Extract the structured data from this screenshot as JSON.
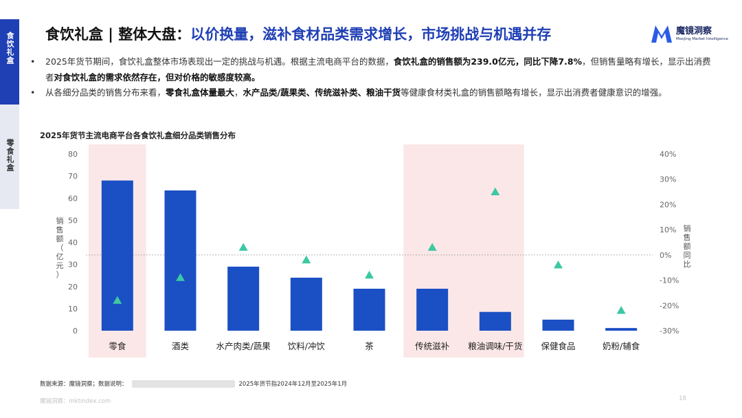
{
  "side_tabs": {
    "active": "食饮礼盒",
    "inactive": "零食礼盒"
  },
  "header": {
    "title_prefix": "食饮礼盒 | 整体大盘：",
    "title_highlight": "以价换量，滋补食材品类需求增长，市场挑战与机遇并存",
    "logo_cn": "魔镜洞察",
    "logo_en": "Moojing Market Intelligence",
    "logo_color": "#2b5ce8"
  },
  "bullets": [
    {
      "s1": "2025年货节期间，食饮礼盒整体市场表现出一定的挑战与机遇。根据主流电商平台的数据，",
      "b1": "食饮礼盒的销售额为239.0亿元，同比下降7.8%",
      "s2": "，但销售量略有增长，显示出消费者",
      "b2": "对食饮礼盒的需求依然存在，但对价格的敏感度较高。",
      "s3": "",
      "b3": "",
      "s4": ""
    },
    {
      "s1": "从各细分品类的销售分布来看，",
      "b1": "零食礼盒体量最大",
      "s2": "，",
      "b2": "水产品类/蔬果类、传统滋补类、粮油干货",
      "s3": "等健康食材类礼盒的销售额略有增长，显示出消费者健康意识的增强。",
      "b3": "",
      "s4": ""
    }
  ],
  "chart_data": {
    "type": "bar",
    "title": "2025年货节主流电商平台各食饮礼盒细分品类销售分布",
    "categories": [
      "零食",
      "酒类",
      "水产肉类/蔬果",
      "饮料/冲饮",
      "茶",
      "传统滋补",
      "粮油调味/干货",
      "保健食品",
      "奶粉/辅食"
    ],
    "series": [
      {
        "name": "销售额（亿元）",
        "kind": "bar",
        "axis": "left",
        "values": [
          68,
          63.5,
          29,
          24,
          19,
          19,
          8.5,
          5,
          1.2
        ],
        "color": "#1b4fc4"
      },
      {
        "name": "销售额同比",
        "kind": "marker",
        "axis": "right",
        "values": [
          -18,
          -9,
          3,
          -2,
          -8,
          3,
          25,
          -4,
          -22
        ],
        "color": "#3cc8a2"
      }
    ],
    "ylabel": "销售额（亿元）",
    "y2label": "销售额同比",
    "ylim": [
      0,
      80
    ],
    "yticks": [
      "0",
      "10",
      "20",
      "30",
      "40",
      "50",
      "60",
      "70",
      "80"
    ],
    "y2lim": [
      -30,
      40
    ],
    "y2ticks": [
      "-30%",
      "-20%",
      "-10%",
      "0%",
      "10%",
      "20%",
      "30%",
      "40%"
    ],
    "highlighted_categories": [
      "零食",
      "传统滋补",
      "粮油调味/干货"
    ],
    "highlight_color": "#fbe7e7",
    "zero_line": "dashed"
  },
  "source": {
    "prefix": "数据来源：魔镜洞察；数据说明：",
    "note": "2025年货节指2024年12月至2025年1月"
  },
  "footer": {
    "site": "魔镜洞察：mktindex.com",
    "page": "18"
  }
}
